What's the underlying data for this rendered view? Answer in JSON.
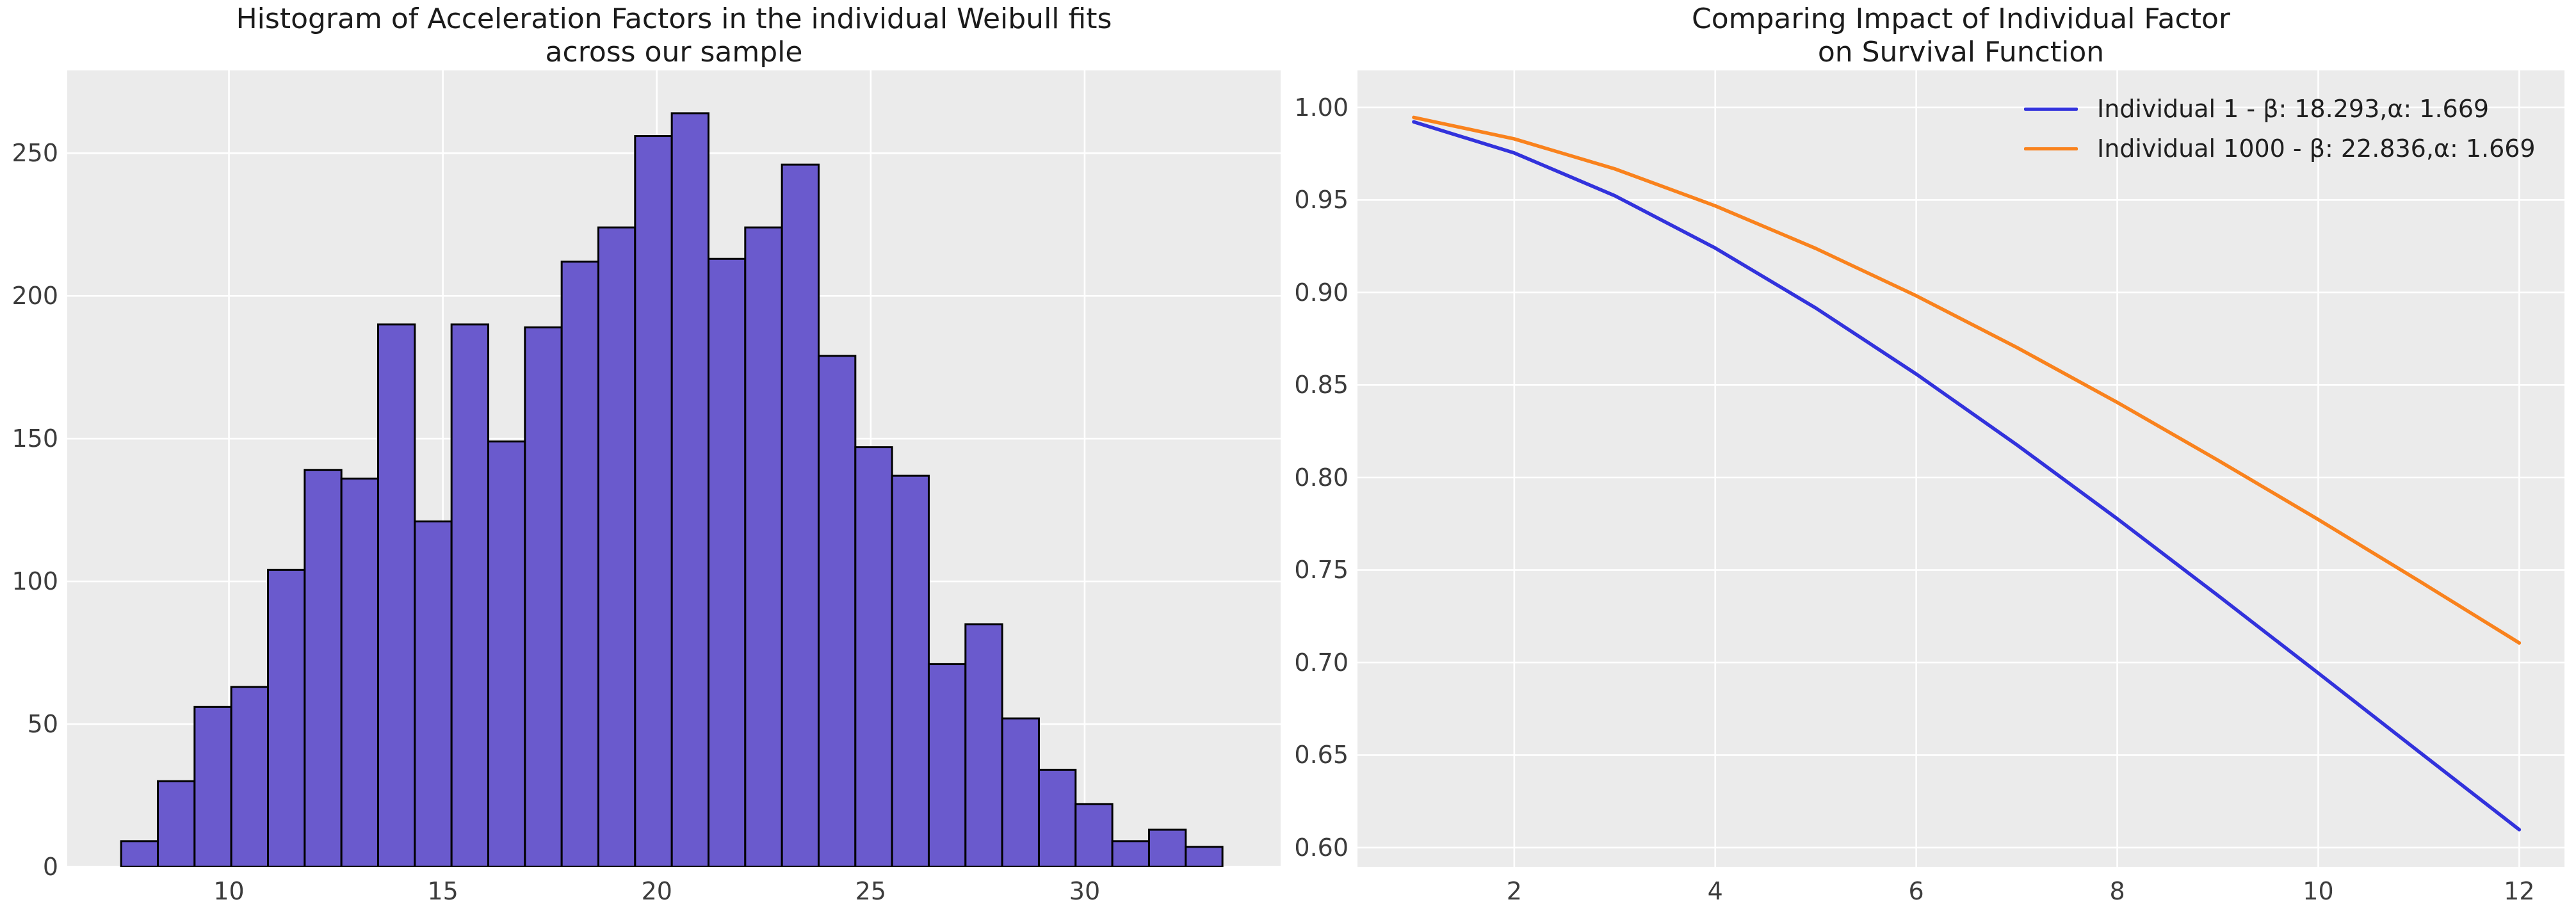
{
  "figure": {
    "background": "#ffffff",
    "panel_background": "#ebebeb",
    "grid_color": "#ffffff",
    "bar_edge_color": "#000000",
    "tick_text_color": "#3c3c3c",
    "title_text_color": "#1b1b1b"
  },
  "chart_data": [
    {
      "type": "bar",
      "subtype": "histogram",
      "title_lines": [
        "Histogram of Acceleration Factors in the individual Weibull fits",
        "across our sample"
      ],
      "bar_color": "#6a5acd",
      "bar_edge_color": "#000000",
      "bin_start": 7.48,
      "bin_width": 0.858,
      "counts": [
        9,
        30,
        56,
        63,
        104,
        139,
        136,
        190,
        121,
        190,
        149,
        189,
        212,
        224,
        256,
        264,
        213,
        224,
        246,
        179,
        147,
        137,
        71,
        85,
        52,
        34,
        22,
        9,
        13,
        7
      ],
      "xlabel": "",
      "ylabel": "",
      "xlim": [
        6.22,
        34.58
      ],
      "ylim": [
        0,
        279
      ],
      "xticks": [
        {
          "v": 10,
          "label": "10"
        },
        {
          "v": 15,
          "label": "15"
        },
        {
          "v": 20,
          "label": "20"
        },
        {
          "v": 25,
          "label": "25"
        },
        {
          "v": 30,
          "label": "30"
        }
      ],
      "yticks": [
        {
          "v": 0,
          "label": "0"
        },
        {
          "v": 50,
          "label": "50"
        },
        {
          "v": 100,
          "label": "100"
        },
        {
          "v": 150,
          "label": "150"
        },
        {
          "v": 200,
          "label": "200"
        },
        {
          "v": 250,
          "label": "250"
        }
      ],
      "grid": true,
      "legend_position": "none"
    },
    {
      "type": "line",
      "title_lines": [
        "Comparing Impact of Individual Factor",
        "on Survival Function"
      ],
      "x": [
        1,
        2,
        3,
        4,
        5,
        6,
        7,
        8,
        9,
        10,
        11,
        12
      ],
      "series": [
        {
          "name": "Individual 1 - β: 18.293,α: 1.669",
          "color": "#3232dc",
          "beta": 18.293,
          "alpha": 1.669,
          "values": [
            0.9922,
            0.9754,
            0.9523,
            0.924,
            0.8916,
            0.8559,
            0.8177,
            0.7777,
            0.7363,
            0.6943,
            0.6519,
            0.6097
          ]
        },
        {
          "name": "Individual 1000 - β: 22.836,α: 1.669",
          "color": "#f9821d",
          "beta": 22.836,
          "alpha": 1.669,
          "values": [
            0.9946,
            0.983,
            0.9668,
            0.9468,
            0.9238,
            0.8982,
            0.8703,
            0.8406,
            0.8094,
            0.7773,
            0.7442,
            0.7106
          ]
        }
      ],
      "xlabel": "",
      "ylabel": "",
      "xlim": [
        0.44,
        12.45
      ],
      "ylim": [
        0.5896,
        1.02
      ],
      "xticks": [
        {
          "v": 2,
          "label": "2"
        },
        {
          "v": 4,
          "label": "4"
        },
        {
          "v": 6,
          "label": "6"
        },
        {
          "v": 8,
          "label": "8"
        },
        {
          "v": 10,
          "label": "10"
        },
        {
          "v": 12,
          "label": "12"
        }
      ],
      "yticks": [
        {
          "v": 0.6,
          "label": "0.60"
        },
        {
          "v": 0.65,
          "label": "0.65"
        },
        {
          "v": 0.7,
          "label": "0.70"
        },
        {
          "v": 0.75,
          "label": "0.75"
        },
        {
          "v": 0.8,
          "label": "0.80"
        },
        {
          "v": 0.85,
          "label": "0.85"
        },
        {
          "v": 0.9,
          "label": "0.90"
        },
        {
          "v": 0.95,
          "label": "0.95"
        },
        {
          "v": 1.0,
          "label": "1.00"
        }
      ],
      "grid": true,
      "legend_position": "upper right"
    }
  ]
}
